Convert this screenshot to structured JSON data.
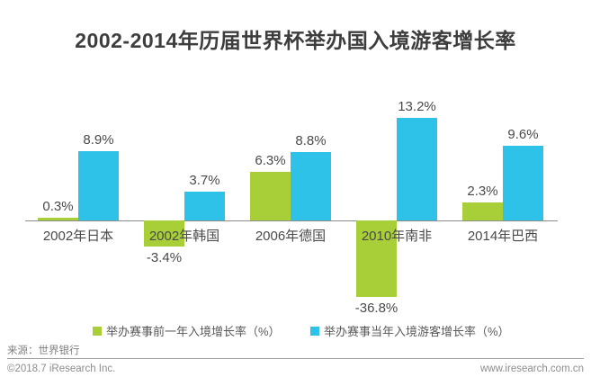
{
  "title": "2002-2014年历届世界杯举办国入境游客增长率",
  "chart_data": {
    "type": "bar",
    "categories": [
      "2002年日本",
      "2002年韩国",
      "2006年德国",
      "2010年南非",
      "2014年巴西"
    ],
    "series": [
      {
        "name": "举办赛事前一年入境增长率（%）",
        "color": "#a8ce38",
        "values": [
          0.3,
          -3.4,
          6.3,
          -36.8,
          2.3
        ],
        "labels": [
          "0.3%",
          "-3.4%",
          "6.3%",
          "-36.8%",
          "2.3%"
        ]
      },
      {
        "name": "举办赛事当年入境游客增长率（%）",
        "color": "#2fc2e9",
        "values": [
          8.9,
          3.7,
          8.8,
          13.2,
          9.6
        ],
        "labels": [
          "8.9%",
          "3.7%",
          "8.8%",
          "13.2%",
          "9.6%"
        ]
      }
    ],
    "title": "2002-2014年历届世界杯举办国入境游客增长率",
    "xlabel": "",
    "ylabel": "",
    "grid": false,
    "legend_position": "bottom",
    "baseline_only_axis": true,
    "negative_bar_visual_clip_note": "the -36.8% bar is drawn shortened in the original figure"
  },
  "footer": {
    "source": "来源：世界银行",
    "copyright": "©2018.7 iResearch Inc.",
    "website": "www.iresearch.com.cn"
  }
}
